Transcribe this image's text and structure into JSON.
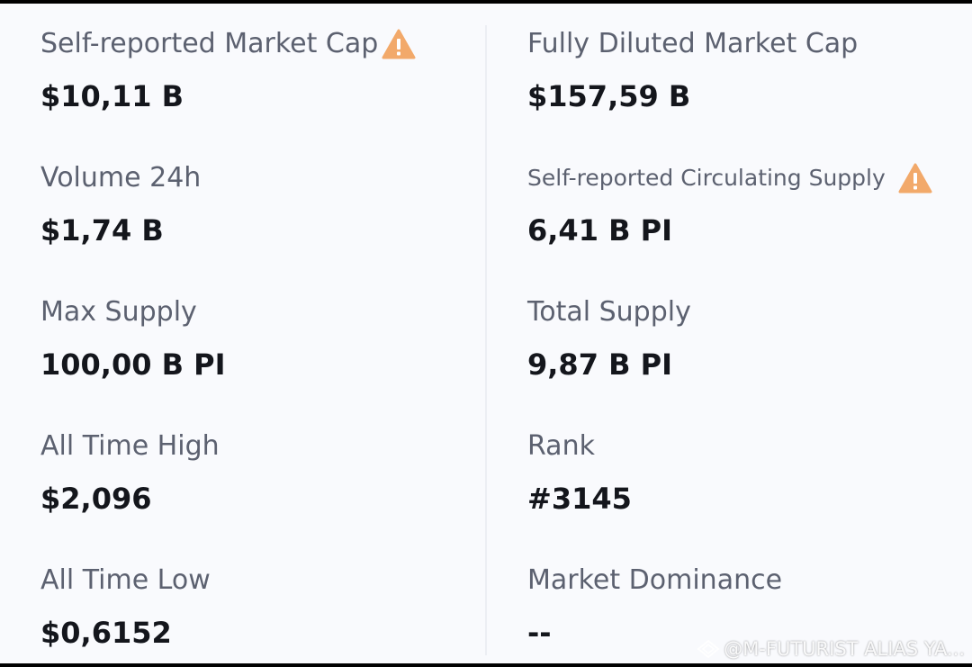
{
  "colors": {
    "panel_bg": "#f9fafd",
    "label_text": "#5c6170",
    "value_text": "#14161c",
    "warning": "#f2a96a"
  },
  "left_column": [
    {
      "label": "Self-reported Market Cap",
      "value": "$10,11 B",
      "icon": "warning-icon"
    },
    {
      "label": "Volume 24h",
      "value": "$1,74 B"
    },
    {
      "label": "Max Supply",
      "value": "100,00 B PI"
    },
    {
      "label": "All Time High",
      "value": "$2,096"
    },
    {
      "label": "All Time Low",
      "value": "$0,6152"
    }
  ],
  "right_column": [
    {
      "label": "Fully Diluted Market Cap",
      "value": "$157,59 B"
    },
    {
      "label": "Self-reported Circulating Supply",
      "value": "6,41 B PI",
      "icon": "warning-icon"
    },
    {
      "label": "Total Supply",
      "value": "9,87 B PI"
    },
    {
      "label": "Rank",
      "value": "#3145"
    },
    {
      "label": "Market Dominance",
      "value": "--"
    }
  ],
  "watermark": {
    "text": "@M-FUTURIST  ALIAS YA...",
    "icon": "diamond-logo-icon"
  }
}
